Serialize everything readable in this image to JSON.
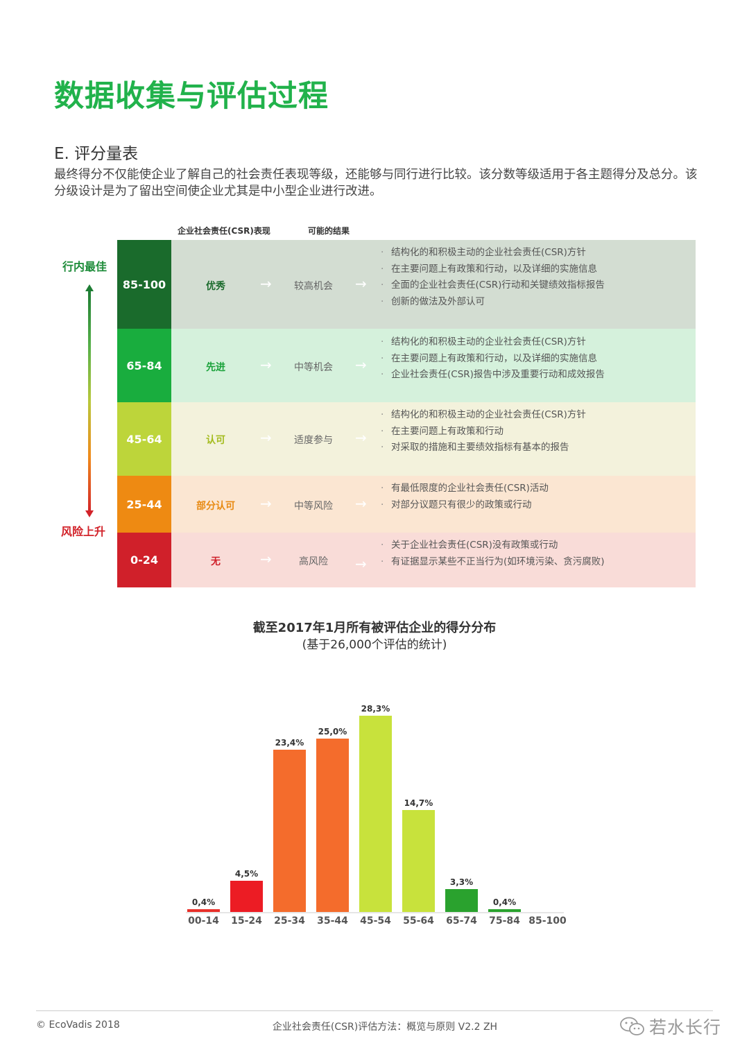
{
  "page": {
    "title": "数据收集与评估过程",
    "section_title": "E. 评分量表",
    "intro": "最终得分不仅能使企业了解自己的社会责任表现等级，还能够与同行进行比较。该分数等级适用于各主题得分及总分。该分级设计是为了留出空间使企业尤其是中小型企业进行改进。"
  },
  "scale": {
    "col_performance": "企业社会责任(CSR)表现",
    "col_outcome": "可能的结果",
    "axis_top": "行内最佳",
    "axis_bottom": "风险上升",
    "arrow": "→",
    "rows": [
      {
        "score": "85-100",
        "performance": "优秀",
        "outcome": "较高机会",
        "score_color": "#1a6b2c",
        "body_color": "#d3ddd2",
        "label_color": "#1a6b2c",
        "bullets": [
          "结构化的和积极主动的企业社会责任(CSR)方针",
          "在主要问题上有政策和行动，以及详细的实施信息",
          "全面的企业社会责任(CSR)行动和关键绩效指标报告",
          "创新的做法及外部认可"
        ]
      },
      {
        "score": "65-84",
        "performance": "先进",
        "outcome": "中等机会",
        "score_color": "#19ad3e",
        "body_color": "#d5f1dc",
        "label_color": "#19a23a",
        "bullets": [
          "结构化的和积极主动的企业社会责任(CSR)方针",
          "在主要问题上有政策和行动，以及详细的实施信息",
          "企业社会责任(CSR)报告中涉及重要行动和成效报告"
        ]
      },
      {
        "score": "45-64",
        "performance": "认可",
        "outcome": "适度参与",
        "score_color": "#bdd53a",
        "body_color": "#f3f2dc",
        "label_color": "#a4bc1e",
        "bullets": [
          "结构化的和积极主动的企业社会责任(CSR)方针",
          "在主要问题上有政策和行动",
          "对采取的措施和主要绩效指标有基本的报告"
        ]
      },
      {
        "score": "25-44",
        "performance": "部分认可",
        "outcome": "中等风险",
        "score_color": "#ee8a12",
        "body_color": "#fbe6d2",
        "label_color": "#e88a12",
        "bullets": [
          "有最低限度的企业社会责任(CSR)活动",
          "对部分议题只有很少的政策或行动"
        ]
      },
      {
        "score": "0-24",
        "performance": "无",
        "outcome": "高风险",
        "score_color": "#d0202a",
        "body_color": "#f9dcd8",
        "label_color": "#d0202a",
        "bullets": [
          "关于企业社会责任(CSR)没有政策或行动",
          "有证据显示某些不正当行为(如环境污染、贪污腐败)"
        ]
      }
    ]
  },
  "chart_data": {
    "type": "bar",
    "title": "截至2017年1月所有被评估企业的得分分布",
    "subtitle": "(基于26,000个评估的统计)",
    "categories": [
      "00-14",
      "15-24",
      "25-34",
      "35-44",
      "45-54",
      "55-64",
      "65-74",
      "75-84",
      "85-100"
    ],
    "values": [
      0.4,
      4.5,
      23.4,
      25.0,
      28.3,
      14.7,
      3.3,
      0.4,
      null
    ],
    "value_labels": [
      "0,4%",
      "4,5%",
      "23,4%",
      "25,0%",
      "28,3%",
      "14,7%",
      "3,3%",
      "0,4%",
      ""
    ],
    "colors": [
      "#e8302a",
      "#ec1c24",
      "#f46c2c",
      "#f46c2c",
      "#c8e23c",
      "#c8e23c",
      "#2aa22e",
      "#2aa22e",
      "#2aa22e"
    ],
    "ylim": [
      0,
      30
    ],
    "grid": false
  },
  "footer": {
    "copyright": "© EcoVadis 2018",
    "doc_title": "企业社会责任(CSR)评估方法：概览与原则 V2.2 ZH",
    "watermark": "若水长行"
  }
}
